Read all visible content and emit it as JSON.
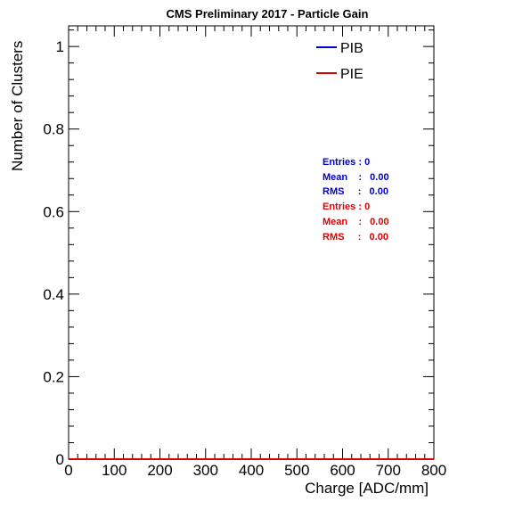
{
  "chart_data": {
    "type": "line",
    "title": "CMS Preliminary 2017  -  Particle Gain",
    "xlabel": "Charge [ADC/mm]",
    "ylabel": "Number of Clusters",
    "xlim": [
      0,
      800
    ],
    "ylim": [
      0,
      1.05
    ],
    "x_ticks": [
      "0",
      "100",
      "200",
      "300",
      "400",
      "500",
      "600",
      "700",
      "800"
    ],
    "y_ticks": [
      "0",
      "0.2",
      "0.4",
      "0.6",
      "0.8",
      "1"
    ],
    "grid": false,
    "legend_position": "top-right",
    "series": [
      {
        "name": "PIB",
        "color": "#0000cc",
        "x": [
          0,
          800
        ],
        "y": [
          0,
          0
        ],
        "stats": {
          "entries": "Entries : 0",
          "mean": "Mean    :   0.00",
          "rms": "RMS     :   0.00"
        }
      },
      {
        "name": "PIE",
        "color": "#dd0000",
        "x": [
          0,
          800
        ],
        "y": [
          0,
          0
        ],
        "stats": {
          "entries": "Entries : 0",
          "mean": "Mean    :   0.00",
          "rms": "RMS     :   0.00"
        }
      }
    ]
  }
}
